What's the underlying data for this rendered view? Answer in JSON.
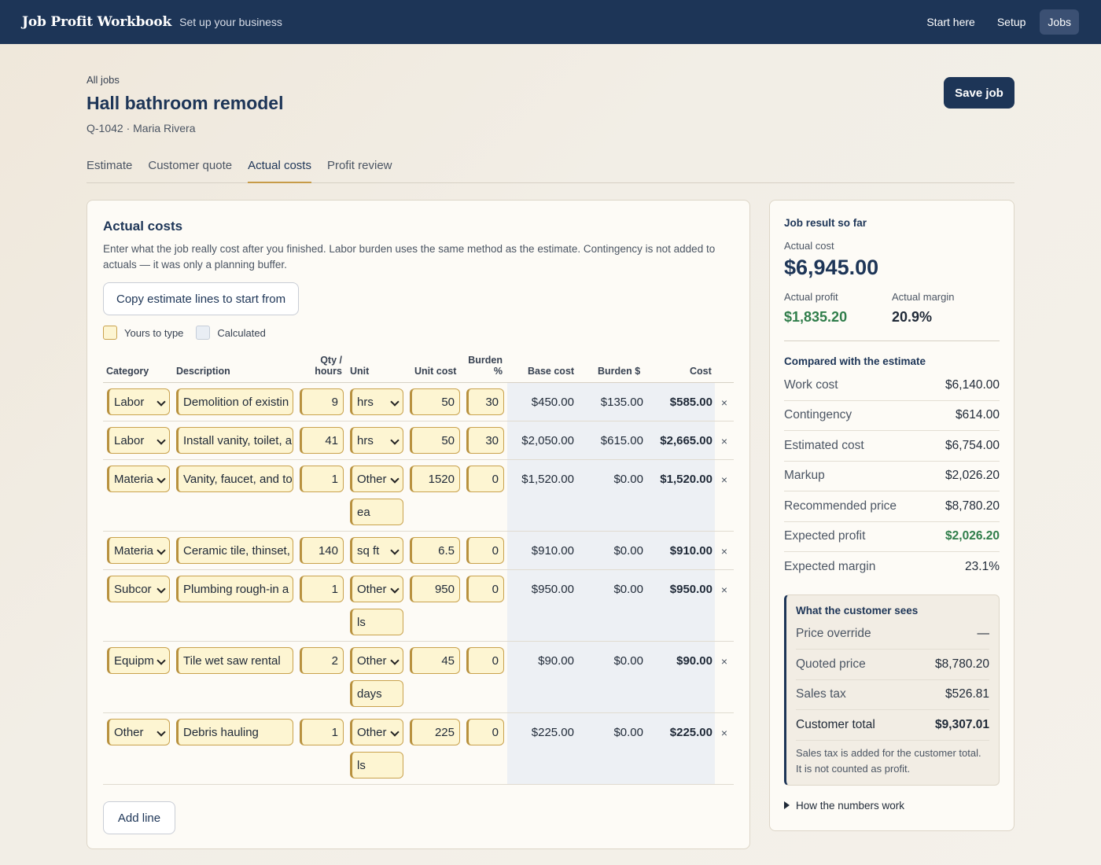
{
  "nav": {
    "brand": "Job Profit Workbook",
    "subtitle": "Set up your business",
    "links": [
      "Start here",
      "Setup",
      "Jobs"
    ]
  },
  "header": {
    "breadcrumb": "All jobs",
    "title": "Hall bathroom remodel",
    "meta": "Q-1042 · Maria Rivera",
    "save_label": "Save job"
  },
  "tabs": [
    "Estimate",
    "Customer quote",
    "Actual costs",
    "Profit review"
  ],
  "actual": {
    "heading": "Actual costs",
    "description": "Enter what the job really cost after you finished. Labor burden uses the same method as the estimate. Contingency is not added to actuals — it was only a planning buffer.",
    "copy_label": "Copy estimate lines to start from",
    "legend_type": "Yours to type",
    "legend_calc": "Calculated",
    "columns": {
      "category": "Category",
      "description": "Description",
      "qty": "Qty / hours",
      "unit": "Unit",
      "unit_cost": "Unit cost",
      "burden_pct": "Burden %",
      "base": "Base cost",
      "burden_amt": "Burden $",
      "cost": "Cost"
    },
    "rows": [
      {
        "category": "Labor",
        "description": "Demolition of existin",
        "qty": "9",
        "unit": "hrs",
        "custom_unit": "",
        "unit_cost": "50",
        "burden": "30",
        "base": "$450.00",
        "burden_amt": "$135.00",
        "cost": "$585.00"
      },
      {
        "category": "Labor",
        "description": "Install vanity, toilet, a",
        "qty": "41",
        "unit": "hrs",
        "custom_unit": "",
        "unit_cost": "50",
        "burden": "30",
        "base": "$2,050.00",
        "burden_amt": "$615.00",
        "cost": "$2,665.00"
      },
      {
        "category": "Materia",
        "description": "Vanity, faucet, and to",
        "qty": "1",
        "unit": "Other",
        "custom_unit": "ea",
        "unit_cost": "1520",
        "burden": "0",
        "base": "$1,520.00",
        "burden_amt": "$0.00",
        "cost": "$1,520.00"
      },
      {
        "category": "Materia",
        "description": "Ceramic tile, thinset,",
        "qty": "140",
        "unit": "sq ft",
        "custom_unit": "",
        "unit_cost": "6.5",
        "burden": "0",
        "base": "$910.00",
        "burden_amt": "$0.00",
        "cost": "$910.00"
      },
      {
        "category": "Subcor",
        "description": "Plumbing rough-in a",
        "qty": "1",
        "unit": "Other",
        "custom_unit": "ls",
        "unit_cost": "950",
        "burden": "0",
        "base": "$950.00",
        "burden_amt": "$0.00",
        "cost": "$950.00"
      },
      {
        "category": "Equipm",
        "description": "Tile wet saw rental",
        "qty": "2",
        "unit": "Other",
        "custom_unit": "days",
        "unit_cost": "45",
        "burden": "0",
        "base": "$90.00",
        "burden_amt": "$0.00",
        "cost": "$90.00"
      },
      {
        "category": "Other",
        "description": "Debris hauling",
        "qty": "1",
        "unit": "Other",
        "custom_unit": "ls",
        "unit_cost": "225",
        "burden": "0",
        "base": "$225.00",
        "burden_amt": "$0.00",
        "cost": "$225.00"
      }
    ],
    "remove_glyph": "×",
    "add_label": "Add line"
  },
  "summary": {
    "heading": "Job result so far",
    "actual_cost_label": "Actual cost",
    "actual_cost": "$6,945.00",
    "profit_label": "Actual profit",
    "profit": "$1,835.20",
    "margin_label": "Actual margin",
    "margin": "20.9%",
    "compare_heading": "Compared with the estimate",
    "compare": [
      {
        "label": "Work cost",
        "value": "$6,140.00"
      },
      {
        "label": "Contingency",
        "value": "$614.00"
      },
      {
        "label": "Estimated cost",
        "value": "$6,754.00"
      },
      {
        "label": "Markup",
        "value": "$2,026.20"
      },
      {
        "label": "Recommended price",
        "value": "$8,780.20"
      },
      {
        "label": "Expected profit",
        "value": "$2,026.20"
      },
      {
        "label": "Expected margin",
        "value": "23.1%"
      }
    ],
    "customer": {
      "heading": "What the customer sees",
      "rows": [
        {
          "label": "Price override",
          "value": "—"
        },
        {
          "label": "Quoted price",
          "value": "$8,780.20"
        },
        {
          "label": "Sales tax",
          "value": "$526.81"
        },
        {
          "label": "Customer total",
          "value": "$9,307.01"
        }
      ],
      "note": "Sales tax is added for the customer total. It is not counted as profit."
    },
    "details_label": "How the numbers work"
  },
  "colors": {
    "navy": "#1d3557",
    "gold": "#c9a24d",
    "green": "#2f7d4a"
  }
}
